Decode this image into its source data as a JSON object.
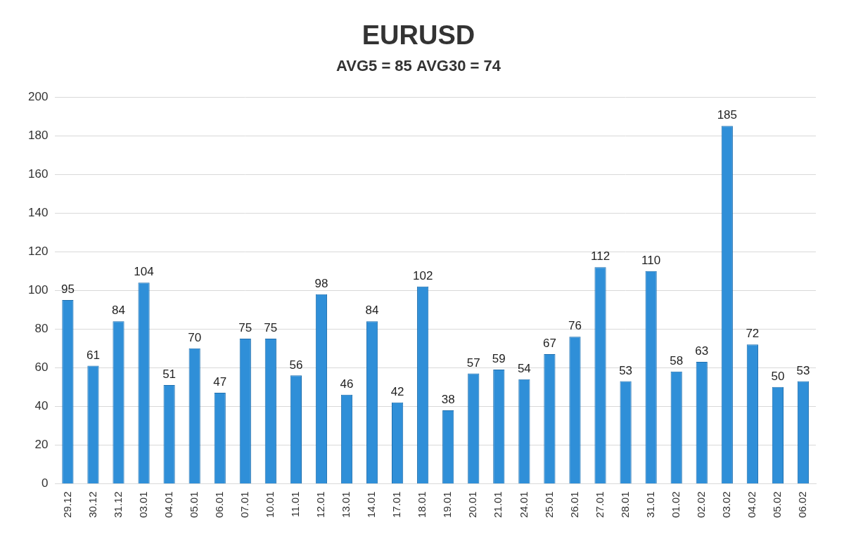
{
  "chart_data": {
    "type": "bar",
    "title": "EURUSD",
    "subtitle": "AVG5 = 85 AVG30 = 74",
    "categories": [
      "29.12",
      "30.12",
      "31.12",
      "03.01",
      "04.01",
      "05.01",
      "06.01",
      "07.01",
      "10.01",
      "11.01",
      "12.01",
      "13.01",
      "14.01",
      "17.01",
      "18.01",
      "19.01",
      "20.01",
      "21.01",
      "24.01",
      "25.01",
      "26.01",
      "27.01",
      "28.01",
      "31.01",
      "01.02",
      "02.02",
      "03.02",
      "04.02",
      "05.02",
      "06.02"
    ],
    "values": [
      95,
      61,
      84,
      104,
      51,
      70,
      47,
      75,
      75,
      56,
      98,
      46,
      84,
      42,
      102,
      38,
      57,
      59,
      54,
      67,
      76,
      112,
      53,
      110,
      58,
      63,
      185,
      72,
      50,
      53
    ],
    "color": "#2f8fd8",
    "ylim": [
      0,
      200
    ],
    "yticks": [
      0,
      20,
      40,
      60,
      80,
      100,
      120,
      140,
      160,
      180,
      200
    ],
    "grid": true,
    "data_labels": true
  }
}
